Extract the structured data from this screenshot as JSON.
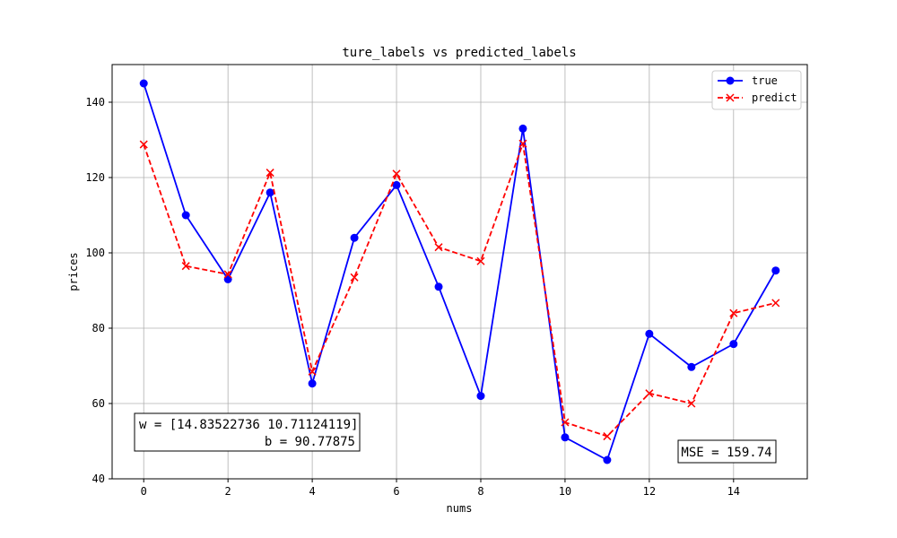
{
  "chart_data": {
    "type": "line",
    "title": "ture_labels vs predicted_labels",
    "xlabel": "nums",
    "ylabel": "prices",
    "xlim": [
      -0.75,
      15.75
    ],
    "ylim": [
      40,
      150
    ],
    "x_ticks": [
      0,
      2,
      4,
      6,
      8,
      10,
      12,
      14
    ],
    "y_ticks": [
      40,
      60,
      80,
      100,
      120,
      140
    ],
    "grid": true,
    "legend_position": "upper right",
    "x": [
      0,
      1,
      2,
      3,
      4,
      5,
      6,
      7,
      8,
      9,
      10,
      11,
      12,
      13,
      14,
      15
    ],
    "series": [
      {
        "name": "true",
        "color": "#0000ff",
        "line_style": "solid",
        "marker": "circle",
        "values": [
          145.0,
          110.0,
          93.0,
          116.0,
          65.3,
          104.0,
          118.0,
          91.0,
          62.0,
          133.0,
          51.0,
          45.0,
          78.5,
          69.7,
          75.8,
          95.3
        ]
      },
      {
        "name": "predict",
        "color": "#ff0000",
        "line_style": "dashed",
        "marker": "x",
        "values": [
          128.8,
          96.5,
          94.3,
          121.3,
          68.5,
          93.5,
          121.0,
          101.5,
          97.8,
          129.0,
          55.0,
          51.3,
          62.7,
          60.0,
          84.0,
          86.7
        ]
      }
    ],
    "annotations": [
      {
        "id": "params",
        "lines": [
          "w = [14.83522736 10.71124119]",
          "b = 90.77875"
        ]
      },
      {
        "id": "mse",
        "lines": [
          "MSE = 159.74"
        ]
      }
    ]
  }
}
